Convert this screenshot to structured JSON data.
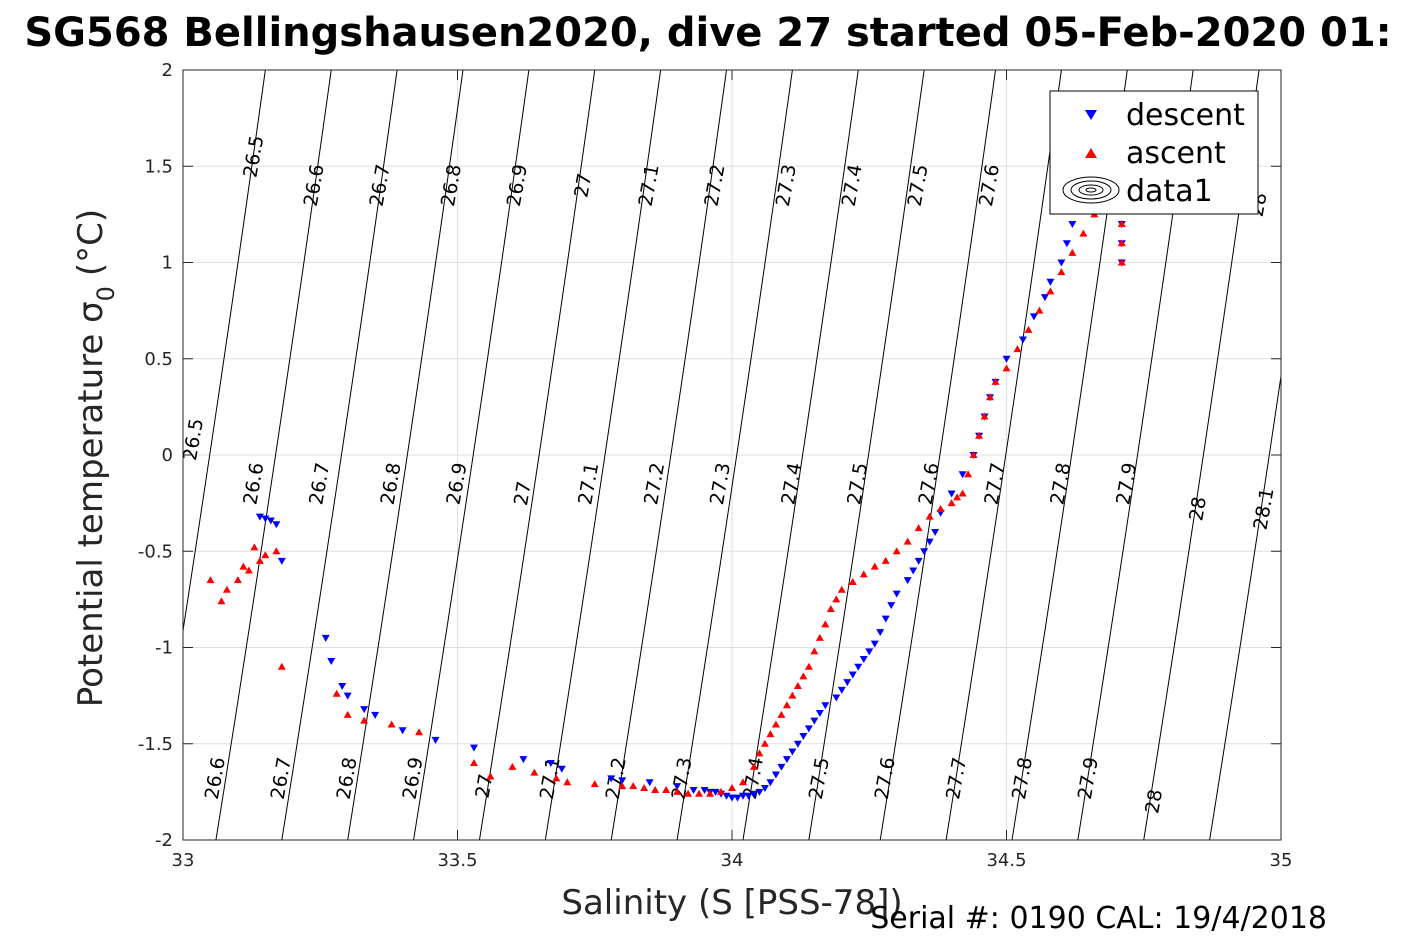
{
  "title": "SG568 Bellingshausen2020, dive 27 started 05-Feb-2020 01:",
  "footer": "Serial #: 0190  CAL: 19/4/2018",
  "chart_data": {
    "type": "scatter",
    "xlabel": "Salinity (S [PSS-78])",
    "ylabel_main": "Potential temperature σ",
    "ylabel_sub": "0",
    "ylabel_unit": "(°C)",
    "xlim": [
      33,
      35
    ],
    "ylim": [
      -2,
      2
    ],
    "xticks": [
      33,
      33.5,
      34,
      34.5,
      35
    ],
    "xtick_labels": [
      "33",
      "33.5",
      "34",
      "34.5",
      "35"
    ],
    "yticks": [
      -2,
      -1.5,
      -1,
      -0.5,
      0,
      0.5,
      1,
      1.5,
      2
    ],
    "ytick_labels": [
      "-2",
      "-1.5",
      "-1",
      "-0.5",
      "0",
      "0.5",
      "1",
      "1.5",
      "2"
    ],
    "grid": true,
    "legend_position": "top-right",
    "legend": [
      {
        "name": "descent",
        "marker": "triangle-down",
        "color": "#0000ff"
      },
      {
        "name": "ascent",
        "marker": "triangle-up",
        "color": "#ff0000"
      },
      {
        "name": "data1",
        "marker": "contour",
        "color": "#000000"
      }
    ],
    "isopycnals": [
      {
        "sigma": "26.5",
        "x_bottom": 32.94,
        "x_top": 33.15
      },
      {
        "sigma": "26.6",
        "x_bottom": 33.06,
        "x_top": 33.27
      },
      {
        "sigma": "26.7",
        "x_bottom": 33.18,
        "x_top": 33.39
      },
      {
        "sigma": "26.8",
        "x_bottom": 33.3,
        "x_top": 33.51
      },
      {
        "sigma": "26.9",
        "x_bottom": 33.42,
        "x_top": 33.63
      },
      {
        "sigma": "27",
        "x_bottom": 33.54,
        "x_top": 33.75
      },
      {
        "sigma": "27.1",
        "x_bottom": 33.66,
        "x_top": 33.87
      },
      {
        "sigma": "27.2",
        "x_bottom": 33.78,
        "x_top": 33.99
      },
      {
        "sigma": "27.3",
        "x_bottom": 33.9,
        "x_top": 34.11
      },
      {
        "sigma": "27.4",
        "x_bottom": 34.02,
        "x_top": 34.23
      },
      {
        "sigma": "27.5",
        "x_bottom": 34.14,
        "x_top": 34.35
      },
      {
        "sigma": "27.6",
        "x_bottom": 34.27,
        "x_top": 34.48
      },
      {
        "sigma": "27.7",
        "x_bottom": 34.39,
        "x_top": 34.6
      },
      {
        "sigma": "27.8",
        "x_bottom": 34.51,
        "x_top": 34.72
      },
      {
        "sigma": "27.9",
        "x_bottom": 34.63,
        "x_top": 34.84
      },
      {
        "sigma": "28",
        "x_bottom": 34.75,
        "x_top": 34.96
      },
      {
        "sigma": "28.1",
        "x_bottom": 34.87,
        "x_top": 35.08
      }
    ],
    "contour_labels": [
      {
        "text": "26.5",
        "x": 33.13,
        "y": 1.55
      },
      {
        "text": "26.6",
        "x": 33.24,
        "y": 1.4
      },
      {
        "text": "26.7",
        "x": 33.36,
        "y": 1.4
      },
      {
        "text": "26.8",
        "x": 33.49,
        "y": 1.4
      },
      {
        "text": "26.9",
        "x": 33.61,
        "y": 1.4
      },
      {
        "text": "27",
        "x": 33.73,
        "y": 1.4
      },
      {
        "text": "27.1",
        "x": 33.85,
        "y": 1.4
      },
      {
        "text": "27.2",
        "x": 33.97,
        "y": 1.4
      },
      {
        "text": "27.3",
        "x": 34.1,
        "y": 1.4
      },
      {
        "text": "27.4",
        "x": 34.22,
        "y": 1.4
      },
      {
        "text": "27.5",
        "x": 34.34,
        "y": 1.4
      },
      {
        "text": "27.6",
        "x": 34.47,
        "y": 1.4
      },
      {
        "text": "28",
        "x": 34.96,
        "y": 1.3
      },
      {
        "text": "26.5",
        "x": 33.02,
        "y": 0.08
      },
      {
        "text": "26.6",
        "x": 33.13,
        "y": -0.15
      },
      {
        "text": "26.7",
        "x": 33.25,
        "y": -0.15
      },
      {
        "text": "26.8",
        "x": 33.38,
        "y": -0.15
      },
      {
        "text": "26.9",
        "x": 33.5,
        "y": -0.15
      },
      {
        "text": "27",
        "x": 33.62,
        "y": -0.2
      },
      {
        "text": "27.1",
        "x": 33.74,
        "y": -0.15
      },
      {
        "text": "27.2",
        "x": 33.86,
        "y": -0.15
      },
      {
        "text": "27.3",
        "x": 33.98,
        "y": -0.15
      },
      {
        "text": "27.4",
        "x": 34.11,
        "y": -0.15
      },
      {
        "text": "27.5",
        "x": 34.23,
        "y": -0.15
      },
      {
        "text": "27.6",
        "x": 34.36,
        "y": -0.15
      },
      {
        "text": "27.7",
        "x": 34.48,
        "y": -0.15
      },
      {
        "text": "27.8",
        "x": 34.6,
        "y": -0.15
      },
      {
        "text": "27.9",
        "x": 34.72,
        "y": -0.15
      },
      {
        "text": "28",
        "x": 34.85,
        "y": -0.28
      },
      {
        "text": "28.1",
        "x": 34.97,
        "y": -0.28
      },
      {
        "text": "26.6",
        "x": 33.06,
        "y": -1.68
      },
      {
        "text": "26.7",
        "x": 33.18,
        "y": -1.68
      },
      {
        "text": "26.8",
        "x": 33.3,
        "y": -1.68
      },
      {
        "text": "26.9",
        "x": 33.42,
        "y": -1.68
      },
      {
        "text": "27",
        "x": 33.55,
        "y": -1.72
      },
      {
        "text": "27.1",
        "x": 33.67,
        "y": -1.68
      },
      {
        "text": "27.2",
        "x": 33.79,
        "y": -1.68
      },
      {
        "text": "27.3",
        "x": 33.91,
        "y": -1.68
      },
      {
        "text": "27.4",
        "x": 34.04,
        "y": -1.68
      },
      {
        "text": "27.5",
        "x": 34.16,
        "y": -1.68
      },
      {
        "text": "27.6",
        "x": 34.28,
        "y": -1.68
      },
      {
        "text": "27.7",
        "x": 34.41,
        "y": -1.68
      },
      {
        "text": "27.8",
        "x": 34.53,
        "y": -1.68
      },
      {
        "text": "27.9",
        "x": 34.65,
        "y": -1.68
      },
      {
        "text": "28",
        "x": 34.77,
        "y": -1.8
      }
    ],
    "series": [
      {
        "name": "descent",
        "marker": "triangle-down",
        "color": "#0000ff",
        "x": [
          34.71,
          34.71,
          34.71,
          34.71,
          34.7,
          34.68,
          34.66,
          34.64,
          34.62,
          34.61,
          34.6,
          34.58,
          34.57,
          34.55,
          34.53,
          34.5,
          34.48,
          34.47,
          34.46,
          34.45,
          34.44,
          34.42,
          34.4,
          34.38,
          34.37,
          34.36,
          34.35,
          34.34,
          34.33,
          34.32,
          34.3,
          34.29,
          34.28,
          34.27,
          34.26,
          34.25,
          34.24,
          34.23,
          34.22,
          34.21,
          34.2,
          34.19,
          34.17,
          34.16,
          34.15,
          34.14,
          34.13,
          34.12,
          34.11,
          34.1,
          34.09,
          34.08,
          34.07,
          34.06,
          34.05,
          34.04,
          34.03,
          34.02,
          34.01,
          34.0,
          33.99,
          33.98,
          33.97,
          33.96,
          33.95,
          33.93,
          33.9,
          33.85,
          33.8,
          33.78,
          33.69,
          33.67,
          33.62,
          33.53,
          33.46,
          33.4,
          33.35,
          33.33,
          33.3,
          33.29,
          33.27,
          33.26,
          33.18,
          33.17,
          33.16,
          33.15,
          33.14
        ],
        "y": [
          1.0,
          1.1,
          1.2,
          1.3,
          1.4,
          1.42,
          1.38,
          1.3,
          1.2,
          1.1,
          1.0,
          0.9,
          0.82,
          0.72,
          0.6,
          0.5,
          0.38,
          0.3,
          0.2,
          0.1,
          0.0,
          -0.1,
          -0.2,
          -0.3,
          -0.4,
          -0.45,
          -0.5,
          -0.55,
          -0.6,
          -0.65,
          -0.72,
          -0.78,
          -0.85,
          -0.92,
          -0.98,
          -1.02,
          -1.06,
          -1.1,
          -1.14,
          -1.18,
          -1.22,
          -1.26,
          -1.3,
          -1.34,
          -1.38,
          -1.42,
          -1.46,
          -1.5,
          -1.54,
          -1.58,
          -1.62,
          -1.66,
          -1.7,
          -1.73,
          -1.75,
          -1.76,
          -1.77,
          -1.77,
          -1.78,
          -1.78,
          -1.77,
          -1.76,
          -1.75,
          -1.75,
          -1.74,
          -1.74,
          -1.72,
          -1.7,
          -1.69,
          -1.68,
          -1.63,
          -1.6,
          -1.58,
          -1.52,
          -1.48,
          -1.43,
          -1.35,
          -1.32,
          -1.25,
          -1.2,
          -1.07,
          -0.95,
          -0.55,
          -0.36,
          -0.34,
          -0.33,
          -0.32
        ]
      },
      {
        "name": "ascent",
        "marker": "triangle-up",
        "color": "#ff0000",
        "x": [
          34.71,
          34.71,
          34.71,
          34.71,
          34.7,
          34.68,
          34.66,
          34.64,
          34.62,
          34.6,
          34.58,
          34.56,
          34.54,
          34.52,
          34.5,
          34.48,
          34.47,
          34.46,
          34.45,
          34.44,
          34.43,
          34.42,
          34.41,
          34.4,
          34.38,
          34.36,
          34.34,
          34.32,
          34.3,
          34.28,
          34.26,
          34.24,
          34.22,
          34.2,
          34.19,
          34.18,
          34.17,
          34.16,
          34.15,
          34.14,
          34.13,
          34.12,
          34.11,
          34.1,
          34.09,
          34.08,
          34.07,
          34.06,
          34.05,
          34.04,
          34.02,
          34.0,
          33.98,
          33.96,
          33.94,
          33.92,
          33.9,
          33.88,
          33.86,
          33.84,
          33.82,
          33.8,
          33.75,
          33.7,
          33.68,
          33.64,
          33.6,
          33.56,
          33.53,
          33.43,
          33.38,
          33.33,
          33.3,
          33.28,
          33.18,
          33.17,
          33.15,
          33.14,
          33.13,
          33.12,
          33.11,
          33.1,
          33.08,
          33.07,
          33.05
        ],
        "y": [
          1.0,
          1.1,
          1.2,
          1.3,
          1.38,
          1.35,
          1.25,
          1.15,
          1.05,
          0.95,
          0.85,
          0.75,
          0.65,
          0.55,
          0.45,
          0.38,
          0.3,
          0.2,
          0.1,
          0.0,
          -0.1,
          -0.2,
          -0.22,
          -0.25,
          -0.28,
          -0.32,
          -0.38,
          -0.45,
          -0.5,
          -0.55,
          -0.58,
          -0.62,
          -0.66,
          -0.7,
          -0.75,
          -0.8,
          -0.88,
          -0.95,
          -1.02,
          -1.1,
          -1.15,
          -1.2,
          -1.25,
          -1.3,
          -1.35,
          -1.4,
          -1.45,
          -1.5,
          -1.55,
          -1.62,
          -1.7,
          -1.73,
          -1.75,
          -1.76,
          -1.76,
          -1.76,
          -1.75,
          -1.74,
          -1.74,
          -1.73,
          -1.72,
          -1.72,
          -1.71,
          -1.7,
          -1.68,
          -1.65,
          -1.62,
          -1.67,
          -1.6,
          -1.44,
          -1.4,
          -1.38,
          -1.35,
          -1.24,
          -1.1,
          -0.5,
          -0.52,
          -0.55,
          -0.48,
          -0.6,
          -0.58,
          -0.65,
          -0.7,
          -0.76,
          -0.65
        ]
      }
    ]
  }
}
